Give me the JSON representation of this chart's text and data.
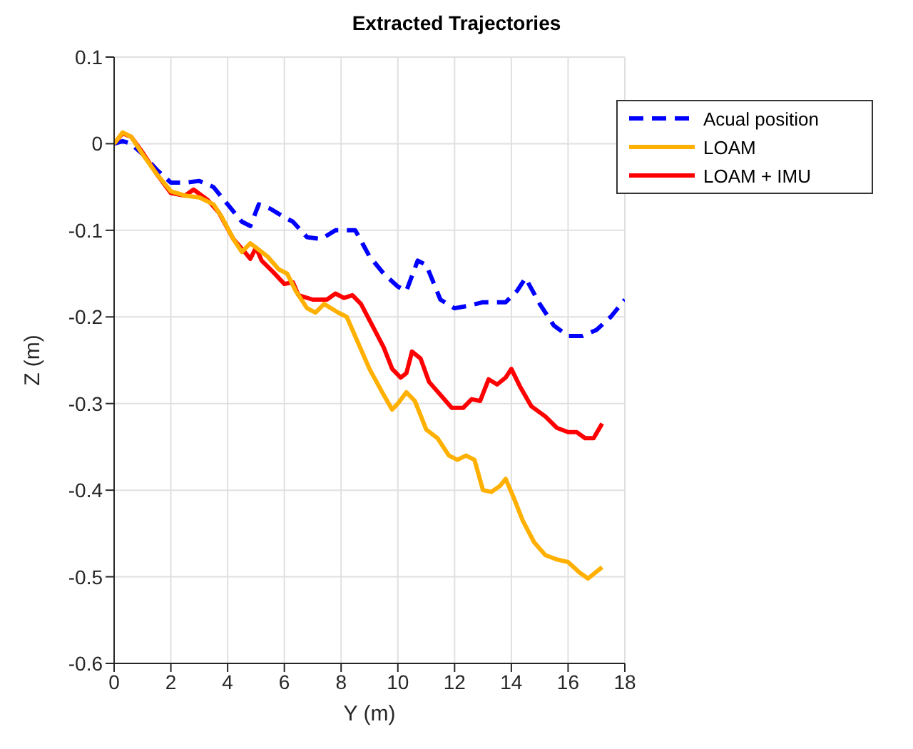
{
  "chart_data": {
    "type": "line",
    "title": "Extracted Trajectories",
    "xlabel": "Y (m)",
    "ylabel": "Z (m)",
    "xlim": [
      0,
      18
    ],
    "xticks": [
      0,
      2,
      4,
      6,
      8,
      10,
      12,
      14,
      16,
      18
    ],
    "ylim": [
      -0.6,
      0.1
    ],
    "yticks": [
      -0.6,
      -0.5,
      -0.4,
      -0.3,
      -0.2,
      -0.1,
      0,
      0.1
    ],
    "grid": true,
    "legend": "top right",
    "marker": "none",
    "series": [
      {
        "name": "Acual position",
        "color": "#0000ff",
        "line_style": "dashed",
        "x": [
          0,
          0.3,
          0.6,
          1,
          1.5,
          2,
          2.5,
          3,
          3.5,
          4,
          4.5,
          4.8,
          5.1,
          5.5,
          6,
          6.3,
          6.8,
          7.3,
          7.8,
          8.5,
          9,
          9.5,
          10,
          10.3,
          10.7,
          11,
          11.5,
          12,
          12.5,
          13,
          13.8,
          14.2,
          14.5,
          15,
          15.5,
          16,
          16.5,
          17,
          17.5,
          18
        ],
        "values": [
          0,
          0.003,
          0,
          -0.012,
          -0.03,
          -0.045,
          -0.045,
          -0.043,
          -0.05,
          -0.07,
          -0.09,
          -0.095,
          -0.07,
          -0.075,
          -0.085,
          -0.09,
          -0.108,
          -0.11,
          -0.1,
          -0.1,
          -0.13,
          -0.15,
          -0.165,
          -0.17,
          -0.135,
          -0.14,
          -0.18,
          -0.19,
          -0.187,
          -0.183,
          -0.183,
          -0.17,
          -0.155,
          -0.185,
          -0.21,
          -0.222,
          -0.222,
          -0.215,
          -0.2,
          -0.18
        ]
      },
      {
        "name": "LOAM + IMU",
        "color": "#ff0000",
        "line_style": "solid",
        "x": [
          0,
          0.3,
          0.6,
          1,
          1.5,
          2,
          2.5,
          2.8,
          3.3,
          3.7,
          4.2,
          4.6,
          4.8,
          5,
          5.2,
          5.6,
          6,
          6.3,
          6.5,
          7,
          7.5,
          7.8,
          8.1,
          8.4,
          8.7,
          9.1,
          9.5,
          9.8,
          10.1,
          10.3,
          10.5,
          10.8,
          11.1,
          11.5,
          11.9,
          12.3,
          12.6,
          12.9,
          13.2,
          13.5,
          13.8,
          14,
          14.3,
          14.7,
          15.2,
          15.6,
          16,
          16.3,
          16.6,
          16.9,
          17.2
        ],
        "values": [
          0,
          0.012,
          0.008,
          -0.01,
          -0.035,
          -0.057,
          -0.06,
          -0.053,
          -0.065,
          -0.08,
          -0.11,
          -0.125,
          -0.133,
          -0.12,
          -0.135,
          -0.148,
          -0.162,
          -0.16,
          -0.175,
          -0.18,
          -0.18,
          -0.173,
          -0.178,
          -0.175,
          -0.185,
          -0.21,
          -0.235,
          -0.26,
          -0.27,
          -0.265,
          -0.24,
          -0.248,
          -0.275,
          -0.29,
          -0.305,
          -0.305,
          -0.295,
          -0.297,
          -0.272,
          -0.278,
          -0.27,
          -0.26,
          -0.28,
          -0.303,
          -0.315,
          -0.328,
          -0.333,
          -0.333,
          -0.34,
          -0.34,
          -0.323
        ]
      },
      {
        "name": "LOAM",
        "color": "#ffb000",
        "line_style": "solid",
        "x": [
          0,
          0.3,
          0.6,
          1,
          1.5,
          2,
          2.5,
          3,
          3.5,
          3.8,
          4.2,
          4.5,
          4.8,
          5,
          5.4,
          5.8,
          6.1,
          6.4,
          6.8,
          7.1,
          7.4,
          7.9,
          8.2,
          8.6,
          9,
          9.5,
          9.8,
          10,
          10.3,
          10.6,
          11,
          11.4,
          11.8,
          12.1,
          12.4,
          12.7,
          13,
          13.3,
          13.6,
          13.8,
          14.1,
          14.4,
          14.8,
          15.2,
          15.6,
          16,
          16.4,
          16.7,
          17.2
        ],
        "values": [
          0,
          0.013,
          0.008,
          -0.012,
          -0.035,
          -0.055,
          -0.06,
          -0.062,
          -0.07,
          -0.085,
          -0.11,
          -0.125,
          -0.115,
          -0.12,
          -0.13,
          -0.145,
          -0.15,
          -0.17,
          -0.19,
          -0.195,
          -0.185,
          -0.195,
          -0.2,
          -0.23,
          -0.26,
          -0.29,
          -0.307,
          -0.3,
          -0.287,
          -0.297,
          -0.33,
          -0.34,
          -0.36,
          -0.365,
          -0.36,
          -0.365,
          -0.4,
          -0.402,
          -0.395,
          -0.387,
          -0.41,
          -0.435,
          -0.46,
          -0.475,
          -0.48,
          -0.483,
          -0.495,
          -0.502,
          -0.489
        ]
      }
    ]
  }
}
